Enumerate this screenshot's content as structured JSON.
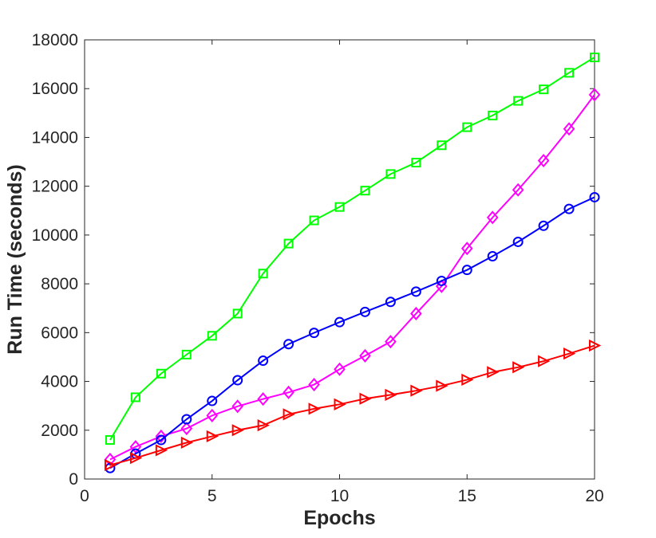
{
  "chart_data": {
    "type": "line",
    "title": "",
    "xlabel": "Epochs",
    "ylabel": "Run Time (seconds)",
    "xlim": [
      0,
      20
    ],
    "ylim": [
      0,
      18000
    ],
    "xticks": [
      0,
      5,
      10,
      15,
      20
    ],
    "yticks": [
      0,
      2000,
      4000,
      6000,
      8000,
      10000,
      12000,
      14000,
      16000,
      18000
    ],
    "grid": false,
    "legend": "none",
    "x": [
      1,
      2,
      3,
      4,
      5,
      6,
      7,
      8,
      9,
      10,
      11,
      12,
      13,
      14,
      15,
      16,
      17,
      18,
      19,
      20
    ],
    "series": [
      {
        "marker": "square",
        "color": "#00ff00",
        "values": [
          1600,
          3350,
          4320,
          5100,
          5870,
          6780,
          8420,
          9650,
          10600,
          11150,
          11820,
          12500,
          12970,
          13680,
          14420,
          14900,
          15500,
          15970,
          16650,
          17280
        ]
      },
      {
        "marker": "diamond",
        "color": "#ff00ff",
        "values": [
          800,
          1320,
          1750,
          2070,
          2600,
          2980,
          3280,
          3550,
          3870,
          4500,
          5050,
          5630,
          6780,
          7900,
          9450,
          10720,
          11850,
          13050,
          14350,
          15750
        ]
      },
      {
        "marker": "circle",
        "color": "#0000ff",
        "values": [
          450,
          1040,
          1600,
          2450,
          3200,
          4050,
          4850,
          5530,
          5990,
          6430,
          6850,
          7260,
          7680,
          8120,
          8570,
          9130,
          9720,
          10380,
          11070,
          11550
        ]
      },
      {
        "marker": "triangle-right",
        "color": "#ff0000",
        "values": [
          570,
          860,
          1180,
          1490,
          1750,
          2000,
          2200,
          2650,
          2880,
          3060,
          3290,
          3450,
          3620,
          3820,
          4070,
          4380,
          4580,
          4830,
          5140,
          5470
        ]
      }
    ]
  }
}
